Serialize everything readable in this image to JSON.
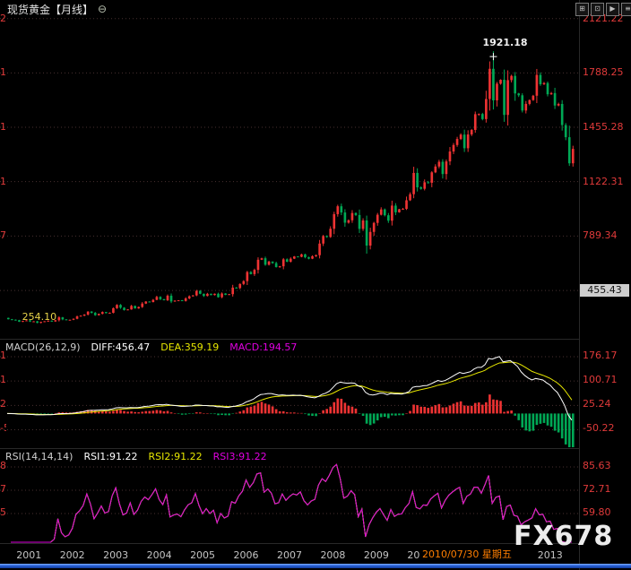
{
  "title_bar": {
    "title": "现货黄金【月线】",
    "collapse_icon": "⊖",
    "toolbar_icons": [
      {
        "name": "grid-layout-icon",
        "glyph": "⊞"
      },
      {
        "name": "chart-window-icon",
        "glyph": "⊡"
      },
      {
        "name": "play-forward-icon",
        "glyph": "▶"
      },
      {
        "name": "menu-icon",
        "glyph": "≡"
      }
    ]
  },
  "watermark": "FX678",
  "colors": {
    "up": "#ee3333",
    "down": "#00a855",
    "axis_label": "#e03a3a",
    "grid": "#473030",
    "diff_line": "#ffffff",
    "dea_line": "#e6e600",
    "rsi1": "#ffffff",
    "rsi2": "#e6e600",
    "rsi3": "#dd00dd",
    "year_label": "#c4c4c4",
    "date_highlight": "#ff7e00",
    "price_box_bg": "#cdcdcd",
    "scrollbar": "#2a62d8"
  },
  "main_panel": {
    "y_axis_labels": [
      "2121.22",
      "1788.25",
      "1455.28",
      "1122.31",
      "789.34"
    ],
    "price_box": "455.43",
    "peak_label": "1921.18",
    "low_label": "254.10"
  },
  "macd_panel": {
    "header": {
      "name": "MACD(26,12,9)",
      "diff": "DIFF:456.47",
      "dea": "DEA:359.19",
      "macd": "MACD:194.57"
    },
    "y_axis_labels": [
      "176.17",
      "100.71",
      "25.24",
      "-50.22"
    ]
  },
  "rsi_panel": {
    "header": {
      "name": "RSI(14,14,14)",
      "rsi1": "RSI1:91.22",
      "rsi2": "RSI2:91.22",
      "rsi3": "RSI3:91.22"
    },
    "y_axis_labels": [
      "85.63",
      "72.71",
      "59.80"
    ]
  },
  "x_axis": {
    "years": [
      "2001",
      "2002",
      "2003",
      "2004",
      "2005",
      "2006",
      "2007",
      "2008",
      "2009",
      "2010",
      "2013"
    ],
    "date_label": "2010/07/30 星期五"
  },
  "chart_data": {
    "type": "candlestick",
    "title": "现货黄金 月线 (Spot Gold Monthly)",
    "start_year": 2000,
    "start_month": 7,
    "open_first": 288.0,
    "closes": [
      279.6,
      277.0,
      273.7,
      264.5,
      269.1,
      272.7,
      265.5,
      266.9,
      257.7,
      263.2,
      267.5,
      270.6,
      265.9,
      273.7,
      291.2,
      278.8,
      274.9,
      276.5,
      282.3,
      296.9,
      301.4,
      308.2,
      326.6,
      318.5,
      304.7,
      312.8,
      323.7,
      316.9,
      319.1,
      347.2,
      367.5,
      350.3,
      336.0,
      339.8,
      361.4,
      346.0,
      354.8,
      375.6,
      388.0,
      384.6,
      398.4,
      416.3,
      402.7,
      395.9,
      423.7,
      388.5,
      393.3,
      395.8,
      391.4,
      407.3,
      420.4,
      425.6,
      453.4,
      435.6,
      422.2,
      435.5,
      427.5,
      435.7,
      414.5,
      437.1,
      429.0,
      433.3,
      473.3,
      470.8,
      495.7,
      513.0,
      568.8,
      556.0,
      582.0,
      644.0,
      653.0,
      613.5,
      632.8,
      623.5,
      599.3,
      603.8,
      646.7,
      632.0,
      650.5,
      664.2,
      661.8,
      677.0,
      659.1,
      650.5,
      665.5,
      672.0,
      743.0,
      789.5,
      783.5,
      833.8,
      923.3,
      971.5,
      933.5,
      871.0,
      885.8,
      930.3,
      918.0,
      833.0,
      884.5,
      730.8,
      814.5,
      869.8,
      919.5,
      952.0,
      916.5,
      883.3,
      975.5,
      934.5,
      953.5,
      955.5,
      1008.2,
      1045.4,
      1175.8,
      1087.5,
      1078.5,
      1118.3,
      1115.5,
      1179.3,
      1215.0,
      1244.0,
      1169.0,
      1246.3,
      1307.0,
      1346.8,
      1383.6,
      1410.3,
      1327.0,
      1411.3,
      1439.0,
      1535.5,
      1536.5,
      1505.5,
      1628.5,
      1813.5,
      1620.0,
      1722.0,
      1746.0,
      1531.0,
      1744.0,
      1770.0,
      1662.5,
      1651.3,
      1558.0,
      1598.5,
      1622.0,
      1648.5,
      1776.0,
      1719.0,
      1726.0,
      1657.5,
      1664.8,
      1588.5,
      1598.3,
      1469.0,
      1394.5,
      1234.6,
      1323.0
    ],
    "ylim_main": [
      160,
      2125
    ],
    "macd": {
      "params": [
        26,
        12,
        9
      ],
      "ylim": [
        -110,
        190
      ]
    },
    "rsi": {
      "params": [
        14,
        14,
        14
      ],
      "ylim": [
        45.88,
        88.61
      ]
    },
    "peak": {
      "index": 134,
      "price": 1921.18
    },
    "low": {
      "index": 9,
      "price": 254.1
    }
  }
}
